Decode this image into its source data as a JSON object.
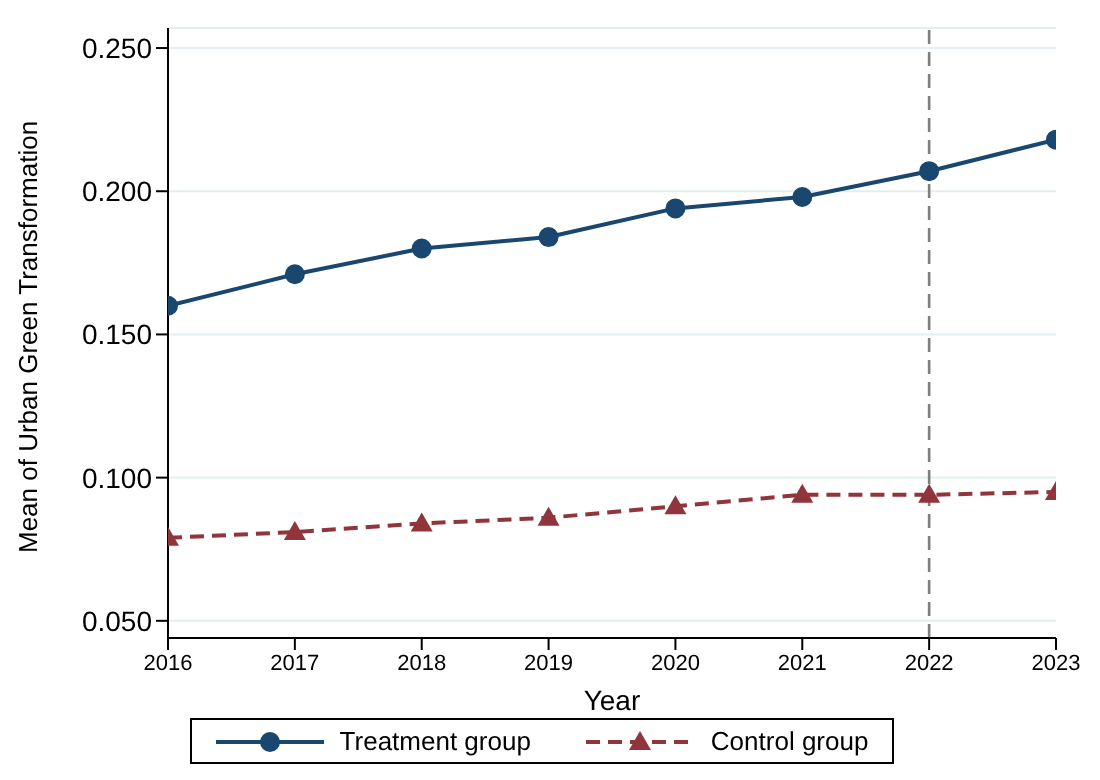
{
  "chart_data": {
    "type": "line",
    "xlabel": "Year",
    "ylabel": "Mean of Urban Green Transformation",
    "x": [
      2016,
      2017,
      2018,
      2019,
      2020,
      2021,
      2022,
      2023
    ],
    "series": [
      {
        "name": "Treatment group",
        "color": "#1a476f",
        "marker": "circle",
        "line_style": "solid",
        "values": [
          0.16,
          0.171,
          0.18,
          0.184,
          0.194,
          0.198,
          0.207,
          0.218
        ]
      },
      {
        "name": "Control group",
        "color": "#90353b",
        "marker": "triangle",
        "line_style": "dashed",
        "values": [
          0.079,
          0.081,
          0.084,
          0.086,
          0.09,
          0.094,
          0.094,
          0.095
        ]
      }
    ],
    "xlim": [
      2016,
      2023
    ],
    "xticks": [
      2016,
      2017,
      2018,
      2019,
      2020,
      2021,
      2022,
      2023
    ],
    "ylim": [
      0.044,
      0.257
    ],
    "yticks": [
      {
        "value": 0.05,
        "label": "0.050"
      },
      {
        "value": 0.1,
        "label": "0.100"
      },
      {
        "value": 0.15,
        "label": "0.150"
      },
      {
        "value": 0.2,
        "label": "0.200"
      },
      {
        "value": 0.25,
        "label": "0.250"
      }
    ],
    "ref_lines": [
      {
        "axis": "x",
        "value": 2022,
        "color": "#7f7f7f",
        "line_style": "dashed"
      }
    ],
    "grid": "y",
    "legend": "bottom"
  }
}
